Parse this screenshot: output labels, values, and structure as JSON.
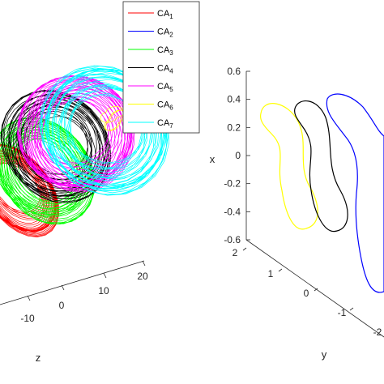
{
  "chart_data": [
    {
      "type": "line",
      "subtype": "3d-trajectory",
      "title": "",
      "xlabel": "z",
      "z_ticks": [
        "-10",
        "0",
        "10",
        "20"
      ],
      "legend_placement": "top-right",
      "grid": false,
      "series": [
        {
          "name": "CA",
          "sub": "1",
          "color": "#ff0000"
        },
        {
          "name": "CA",
          "sub": "2",
          "color": "#0000ff"
        },
        {
          "name": "CA",
          "sub": "3",
          "color": "#00ff00"
        },
        {
          "name": "CA",
          "sub": "4",
          "color": "#000000"
        },
        {
          "name": "CA",
          "sub": "5",
          "color": "#ff00ff"
        },
        {
          "name": "CA",
          "sub": "6",
          "color": "#ffff00"
        },
        {
          "name": "CA",
          "sub": "7",
          "color": "#00ffff"
        }
      ]
    },
    {
      "type": "line",
      "subtype": "3d-closed-orbits",
      "title": "",
      "xlabel": "y",
      "ylabel": "x",
      "y_ticks": [
        "2",
        "1",
        "0",
        "-1",
        "-2"
      ],
      "x_ticks": [
        "0.6",
        "0.4",
        "0.2",
        "0",
        "-0.2",
        "-0.4",
        "-0.6"
      ],
      "x_range": [
        -0.6,
        0.6
      ],
      "grid": false,
      "series": [
        {
          "name": "yellow orbit",
          "color": "#ffff00"
        },
        {
          "name": "black orbit",
          "color": "#000000"
        },
        {
          "name": "blue orbit",
          "color": "#0000ff"
        }
      ]
    }
  ]
}
